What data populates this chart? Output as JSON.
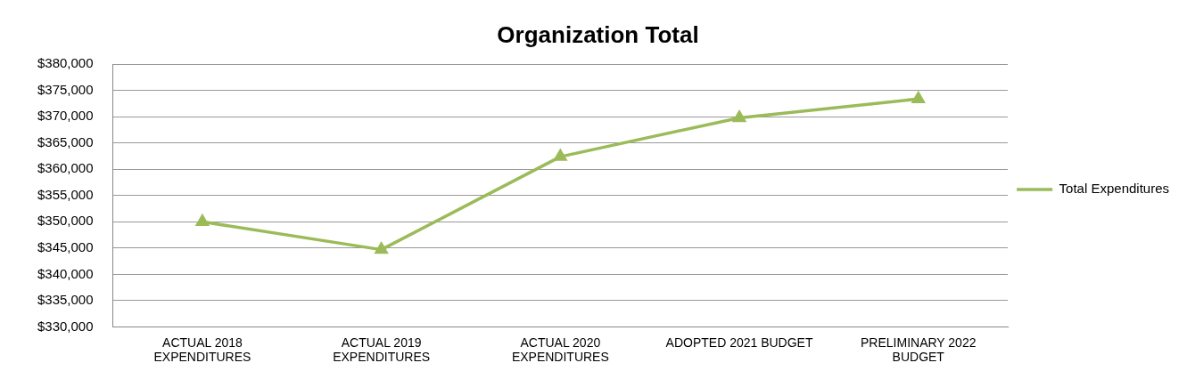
{
  "chart_data": {
    "type": "line",
    "title": "Organization Total",
    "categories": [
      "ACTUAL 2018 EXPENDITURES",
      "ACTUAL 2019 EXPENDITURES",
      "ACTUAL 2020 EXPENDITURES",
      "ADOPTED 2021 BUDGET",
      "PRELIMINARY 2022 BUDGET"
    ],
    "series": [
      {
        "name": "Total Expenditures",
        "color": "#9bbb59",
        "values": [
          350000,
          344700,
          362400,
          369800,
          373400
        ]
      }
    ],
    "ylim": [
      330000,
      380000
    ],
    "yticks": [
      {
        "value": 330000,
        "label": "$330,000"
      },
      {
        "value": 335000,
        "label": "$335,000"
      },
      {
        "value": 340000,
        "label": "$340,000"
      },
      {
        "value": 345000,
        "label": "$345,000"
      },
      {
        "value": 350000,
        "label": "$350,000"
      },
      {
        "value": 355000,
        "label": "$355,000"
      },
      {
        "value": 360000,
        "label": "$360,000"
      },
      {
        "value": 365000,
        "label": "$365,000"
      },
      {
        "value": 370000,
        "label": "$370,000"
      },
      {
        "value": 375000,
        "label": "$375,000"
      },
      {
        "value": 380000,
        "label": "$380,000"
      }
    ],
    "grid": "y",
    "legend": "right",
    "marker": "triangle",
    "line_style": "solid"
  }
}
